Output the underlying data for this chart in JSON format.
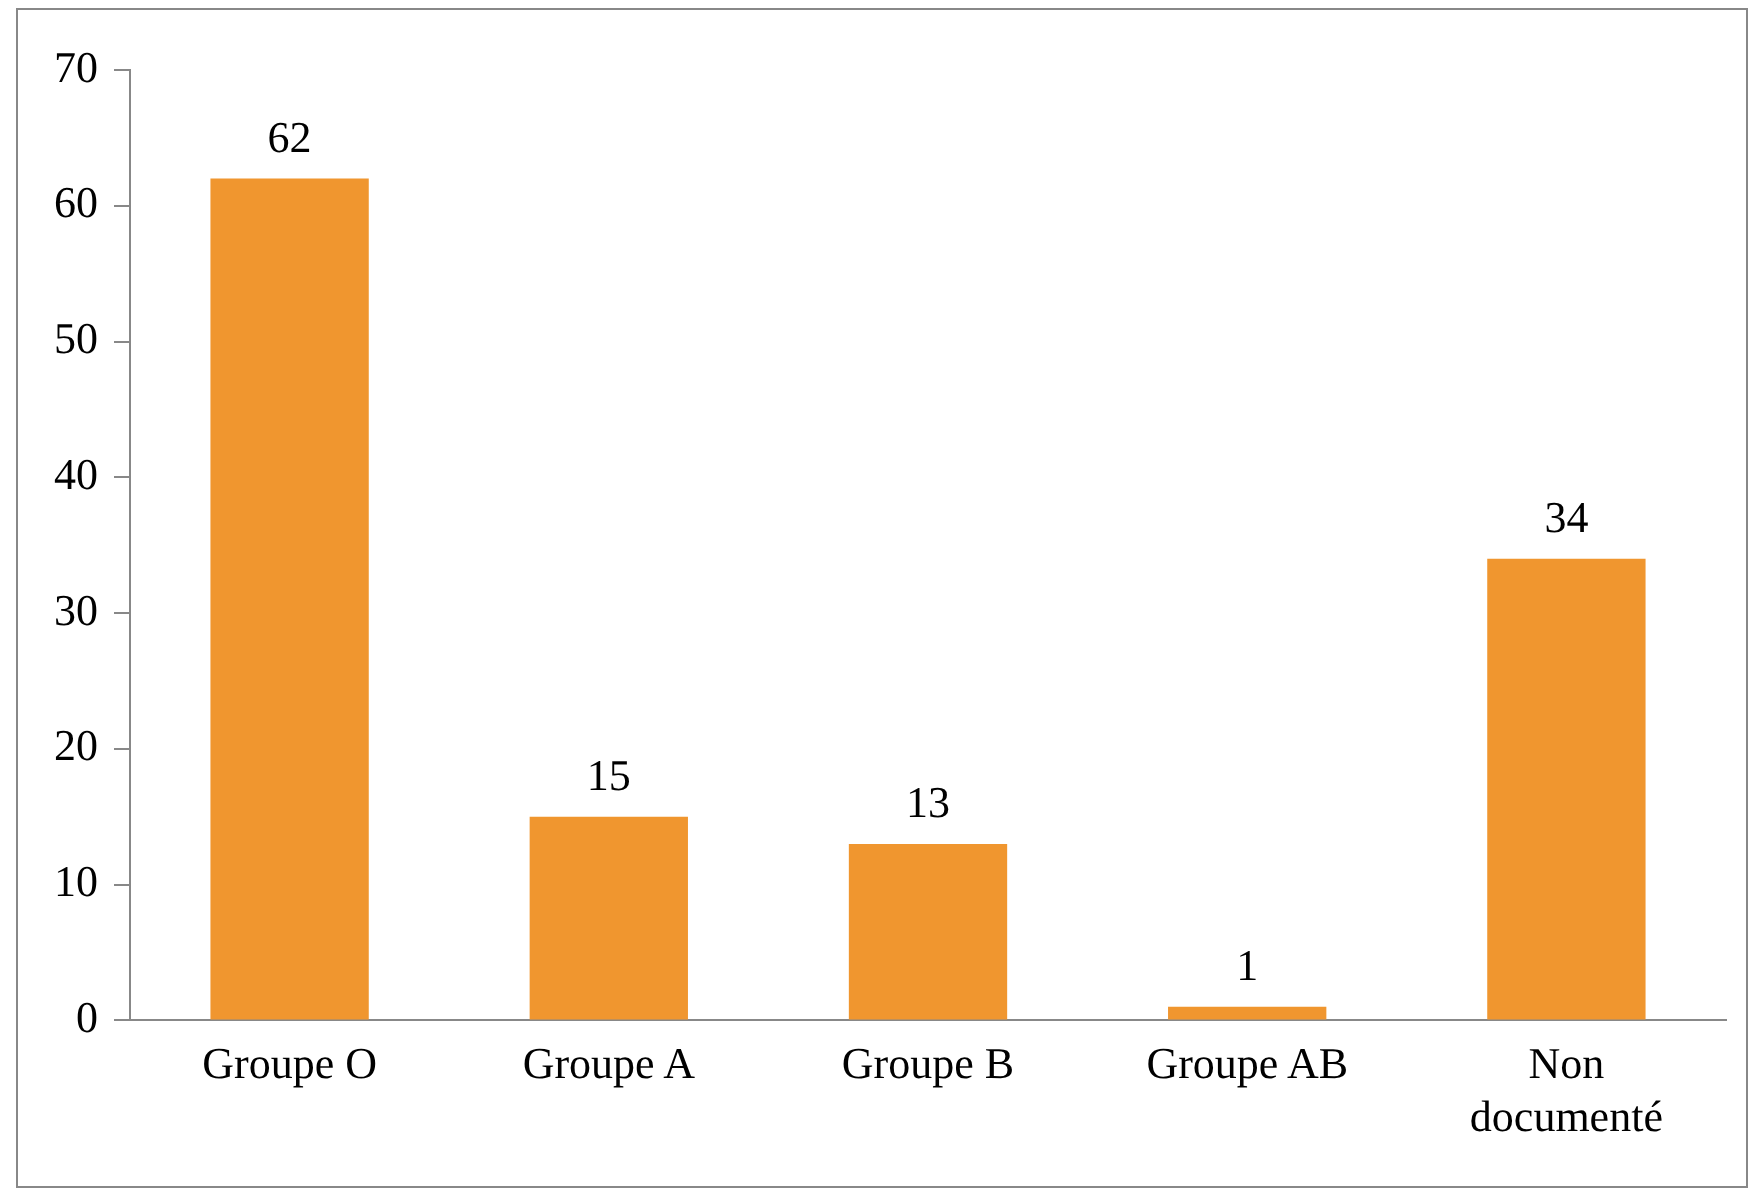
{
  "chart_data": {
    "type": "bar",
    "categories": [
      "Groupe O",
      "Groupe A",
      "Groupe B",
      "Groupe AB",
      "Non documenté"
    ],
    "values": [
      62,
      15,
      13,
      1,
      34
    ],
    "color": "#f0962f",
    "ylim": [
      0,
      70
    ],
    "yticks": [
      0,
      10,
      20,
      30,
      40,
      50,
      60,
      70
    ],
    "grid": false,
    "legend": false,
    "data_labels": true
  }
}
